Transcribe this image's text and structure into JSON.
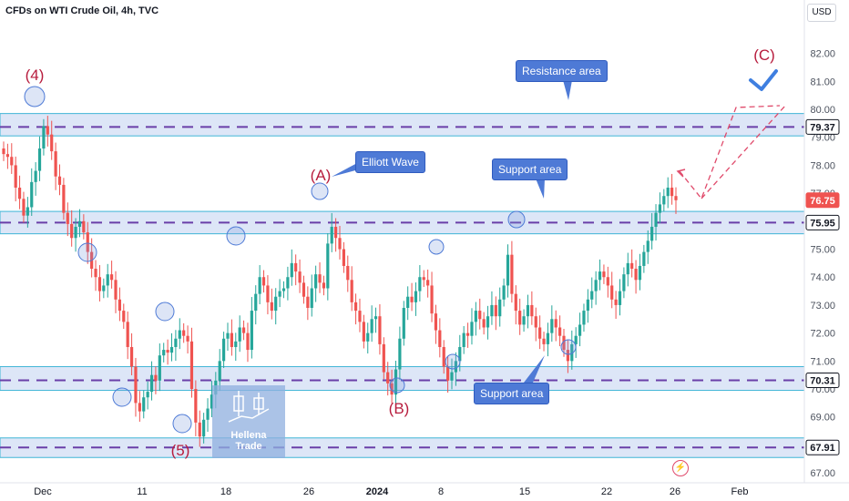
{
  "title": "CFDs on WTI Crude Oil, 4h, TVC",
  "currency": "USD",
  "watermark": {
    "line1": "Hellena",
    "line2": "Trade"
  },
  "callouts": {
    "resistance_top": "Resistance area",
    "elliott": "Elliott Wave",
    "support_mid": "Support area",
    "support_low": "Support area"
  },
  "wave_labels": [
    "(4)",
    "(5)",
    "(A)",
    "(B)",
    "(C)"
  ],
  "colors": {
    "up": "#26a69a",
    "down": "#ef5350",
    "zone_fill": "#dde6f7",
    "zone_line": "#3fb5d6",
    "level_dash": "#6a3fa8",
    "wave_label": "#b71c3d",
    "projection": "#e04a6b",
    "check": "#3f7fe0"
  },
  "chart_data": {
    "type": "candlestick",
    "title": "CFDs on WTI Crude Oil, 4h, TVC",
    "ylim": [
      66.9,
      82.9
    ],
    "y_ticks": [
      82,
      81,
      80,
      79,
      78,
      77,
      76,
      75,
      74,
      73,
      72,
      71,
      70,
      69,
      68,
      67
    ],
    "x_ticks": [
      "Dec",
      "11",
      "18",
      "26",
      "2024",
      "8",
      "15",
      "22",
      "26",
      "Feb"
    ],
    "price_labels": [
      {
        "value": "79.37",
        "color": "#131722",
        "bg": "#ffffff"
      },
      {
        "value": "76.75",
        "color": "#ffffff",
        "bg": "#ef5350"
      },
      {
        "value": "75.95",
        "color": "#131722",
        "bg": "#ffffff"
      },
      {
        "value": "70.31",
        "color": "#131722",
        "bg": "#ffffff"
      },
      {
        "value": "67.91",
        "color": "#131722",
        "bg": "#ffffff"
      }
    ],
    "levels": [
      79.37,
      75.95,
      70.31,
      67.91
    ],
    "zones": [
      [
        79.05,
        79.85
      ],
      [
        75.55,
        76.35
      ],
      [
        69.95,
        70.8
      ],
      [
        67.55,
        68.25
      ]
    ],
    "pivots": [
      {
        "label": "(4)",
        "date": "Dec",
        "price": 79.7
      },
      {
        "label": "(5)",
        "date": "13",
        "price": 67.9
      },
      {
        "label": "(A)",
        "date": "26",
        "price": 76.2
      },
      {
        "label": "(B)",
        "date": "3",
        "price": 69.3
      },
      {
        "label": "(C)",
        "date": "Jan 31",
        "price": 79.5
      }
    ],
    "path": [
      78.4,
      78.3,
      78.0,
      77.2,
      76.8,
      76.2,
      76.5,
      77.4,
      77.8,
      78.6,
      79.4,
      79.1,
      78.5,
      77.6,
      77.3,
      76.3,
      75.9,
      75.4,
      75.8,
      76.0,
      75.6,
      74.9,
      74.3,
      74.0,
      73.5,
      73.7,
      74.1,
      73.9,
      73.2,
      72.8,
      72.4,
      71.5,
      70.8,
      69.5,
      69.2,
      69.7,
      69.9,
      70.5,
      70.3,
      71.2,
      71.4,
      71.3,
      71.5,
      71.8,
      72.1,
      71.9,
      71.7,
      70.0,
      68.8,
      68.3,
      68.9,
      69.3,
      69.8,
      70.3,
      71.0,
      71.8,
      72.0,
      71.5,
      71.7,
      72.2,
      72.0,
      71.4,
      72.8,
      73.4,
      74.0,
      73.7,
      73.1,
      72.8,
      73.3,
      73.5,
      73.6,
      74.0,
      74.5,
      74.2,
      73.8,
      73.3,
      72.9,
      73.6,
      74.1,
      73.8,
      73.6,
      75.2,
      75.8,
      75.4,
      75.0,
      74.4,
      73.9,
      73.1,
      72.8,
      72.4,
      71.7,
      72.0,
      72.5,
      72.6,
      71.6,
      70.6,
      70.2,
      69.8,
      70.7,
      71.8,
      72.9,
      73.3,
      73.1,
      73.5,
      74.0,
      73.9,
      73.7,
      72.7,
      72.1,
      71.5,
      70.8,
      70.3,
      70.6,
      71.0,
      71.5,
      72.0,
      71.9,
      72.4,
      72.8,
      72.5,
      72.2,
      72.6,
      73.0,
      72.6,
      73.2,
      73.7,
      74.8,
      73.4,
      72.8,
      72.3,
      72.6,
      73.0,
      72.6,
      72.2,
      71.8,
      71.6,
      72.0,
      72.5,
      72.2,
      71.9,
      71.4,
      71.0,
      71.6,
      71.9,
      72.3,
      72.8,
      73.2,
      73.5,
      73.9,
      74.2,
      74.0,
      73.7,
      73.2,
      73.0,
      73.5,
      74.1,
      74.5,
      74.3,
      73.9,
      74.4,
      74.9,
      75.3,
      75.8,
      76.3,
      76.6,
      76.9,
      77.2,
      76.9,
      76.75
    ],
    "projection": [
      76.75,
      75.95,
      79.37
    ],
    "projection_alt": [
      76.75,
      75.95,
      79.37,
      78.9
    ]
  }
}
